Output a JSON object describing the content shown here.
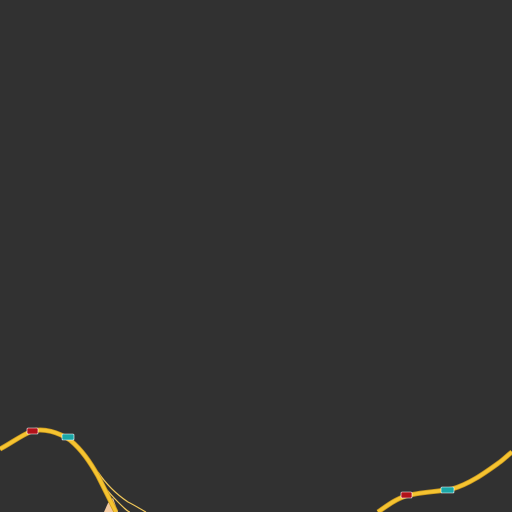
{
  "map": {
    "background_color": "#313131",
    "road_color": "#f5c330",
    "road_edge_color": "#c9981f",
    "ramp_color": "#f0c75a",
    "area_color": "#f2c9a0",
    "shields": [
      {
        "type": "red-route-shield",
        "label": "",
        "color": "#b3121a"
      },
      {
        "type": "teal-route-shield",
        "label": "",
        "color": "#1aa7a7"
      },
      {
        "type": "red-route-shield",
        "label": "",
        "color": "#b3121a"
      },
      {
        "type": "teal-route-shield",
        "label": "",
        "color": "#1aa7a7"
      }
    ]
  }
}
